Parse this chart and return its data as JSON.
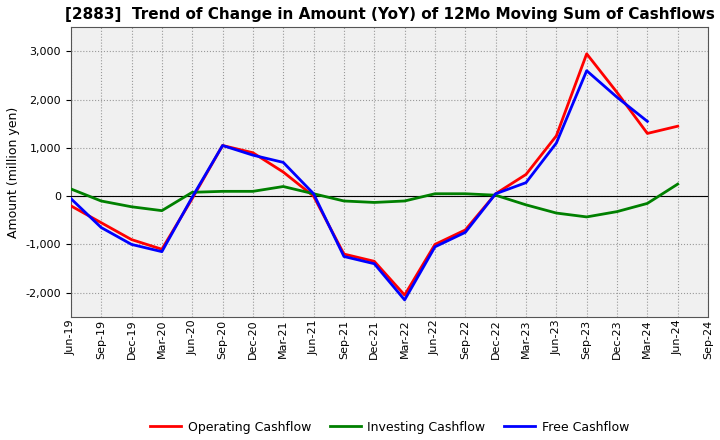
{
  "title": "[2883]  Trend of Change in Amount (YoY) of 12Mo Moving Sum of Cashflows",
  "ylabel": "Amount (million yen)",
  "x_labels": [
    "Jun-19",
    "Sep-19",
    "Dec-19",
    "Mar-20",
    "Jun-20",
    "Sep-20",
    "Dec-20",
    "Mar-21",
    "Jun-21",
    "Sep-21",
    "Dec-21",
    "Mar-22",
    "Jun-22",
    "Sep-22",
    "Dec-22",
    "Mar-23",
    "Jun-23",
    "Sep-23",
    "Dec-23",
    "Mar-24",
    "Jun-24",
    "Sep-24"
  ],
  "operating": [
    -200,
    -550,
    -900,
    -1100,
    -50,
    1050,
    900,
    500,
    0,
    -1200,
    -1350,
    -2050,
    -1000,
    -700,
    50,
    450,
    1250,
    2950,
    2150,
    1300,
    1450,
    null
  ],
  "investing": [
    150,
    -100,
    -220,
    -300,
    80,
    100,
    100,
    200,
    50,
    -100,
    -130,
    -100,
    50,
    50,
    20,
    -180,
    -350,
    -430,
    -320,
    -150,
    250,
    null
  ],
  "free": [
    -50,
    -650,
    -1000,
    -1150,
    -20,
    1050,
    850,
    700,
    50,
    -1250,
    -1400,
    -2150,
    -1050,
    -750,
    50,
    280,
    1100,
    2600,
    2050,
    1550,
    null,
    null
  ],
  "ylim": [
    -2500,
    3500
  ],
  "yticks": [
    -2000,
    -1000,
    0,
    1000,
    2000,
    3000
  ],
  "operating_color": "#ff0000",
  "investing_color": "#008000",
  "free_color": "#0000ff",
  "line_width": 2.0,
  "background_color": "#ffffff",
  "plot_bg_color": "#f0f0f0",
  "grid_color": "#999999",
  "legend_labels": [
    "Operating Cashflow",
    "Investing Cashflow",
    "Free Cashflow"
  ],
  "title_fontsize": 11,
  "ylabel_fontsize": 9,
  "tick_fontsize": 8,
  "legend_fontsize": 9
}
